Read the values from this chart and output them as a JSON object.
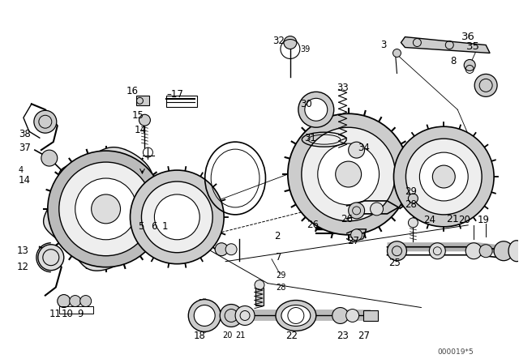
{
  "bg_color": "#ffffff",
  "fig_width": 6.4,
  "fig_height": 4.48,
  "dpi": 100,
  "watermark": "000019*5",
  "line_color": "#000000",
  "text_color": "#000000",
  "label_fontsize": 8.5,
  "small_fontsize": 7.0
}
